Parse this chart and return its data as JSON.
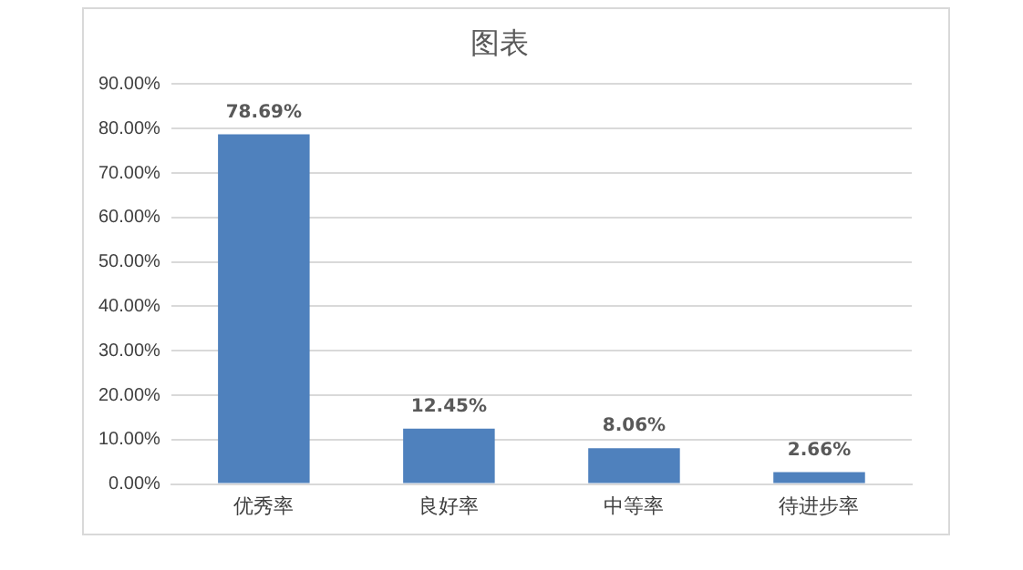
{
  "chart_data": {
    "type": "bar",
    "title": "图表",
    "categories": [
      "优秀率",
      "良好率",
      "中等率",
      "待进步率"
    ],
    "values": [
      78.69,
      12.45,
      8.06,
      2.66
    ],
    "value_labels": [
      "78.69%",
      "12.45%",
      "8.06%",
      "2.66%"
    ],
    "color": "#4f81bd",
    "ylim": [
      0,
      90
    ],
    "yticks": [
      {
        "value": 0,
        "label": "0.00%"
      },
      {
        "value": 10,
        "label": "10.00%"
      },
      {
        "value": 20,
        "label": "20.00%"
      },
      {
        "value": 30,
        "label": "30.00%"
      },
      {
        "value": 40,
        "label": "40.00%"
      },
      {
        "value": 50,
        "label": "50.00%"
      },
      {
        "value": 60,
        "label": "60.00%"
      },
      {
        "value": 70,
        "label": "70.00%"
      },
      {
        "value": 80,
        "label": "80.00%"
      },
      {
        "value": 90,
        "label": "90.00%"
      }
    ],
    "grid": "y"
  }
}
